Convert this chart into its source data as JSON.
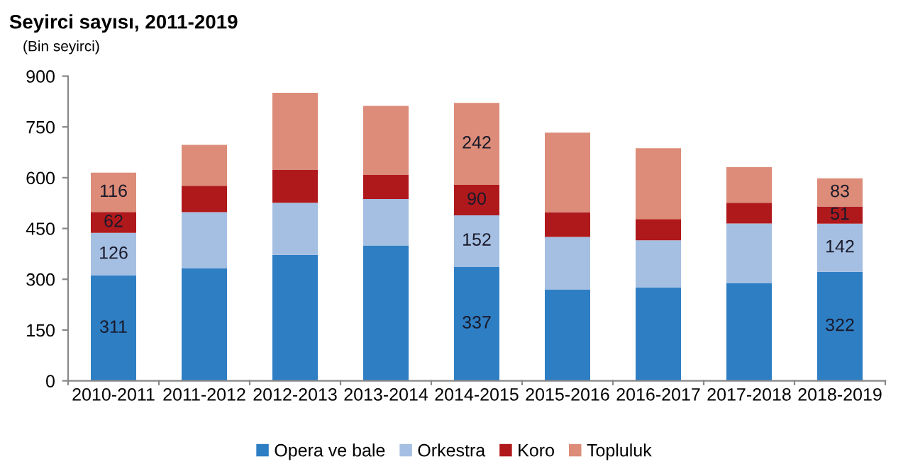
{
  "chart_data": {
    "type": "bar",
    "title": "Seyirci sayısı, 2011-2019",
    "ylabel": "(Bin seyirci)",
    "categories": [
      "2010-2011",
      "2011-2012",
      "2012-2013",
      "2013-2014",
      "2014-2015",
      "2015-2016",
      "2016-2017",
      "2017-2018",
      "2018-2019"
    ],
    "stacked": true,
    "ylim": [
      0,
      900
    ],
    "yticks": [
      0,
      150,
      300,
      450,
      600,
      750,
      900
    ],
    "grid": false,
    "legend": "bottom",
    "series": [
      {
        "name": "Opera ve bale",
        "color": "#2e7ec4",
        "values": [
          311,
          332,
          372,
          400,
          337,
          269,
          276,
          289,
          322
        ],
        "value_labels": [
          "311",
          null,
          null,
          null,
          "337",
          null,
          null,
          null,
          "322"
        ]
      },
      {
        "name": "Orkestra",
        "color": "#a5bfe3",
        "values": [
          126,
          166,
          154,
          137,
          152,
          156,
          139,
          176,
          142
        ],
        "value_labels": [
          "126",
          null,
          null,
          null,
          "152",
          null,
          null,
          null,
          "142"
        ]
      },
      {
        "name": "Koro",
        "color": "#b0191c",
        "values": [
          62,
          78,
          98,
          71,
          90,
          73,
          63,
          61,
          51
        ],
        "value_labels": [
          "62",
          null,
          null,
          null,
          "90",
          null,
          null,
          null,
          "51"
        ]
      },
      {
        "name": "Topluluk",
        "color": "#dc8c78",
        "values": [
          116,
          121,
          227,
          204,
          242,
          235,
          209,
          105,
          83
        ],
        "value_labels": [
          "116",
          null,
          null,
          null,
          "242",
          null,
          null,
          null,
          "83"
        ]
      }
    ]
  }
}
